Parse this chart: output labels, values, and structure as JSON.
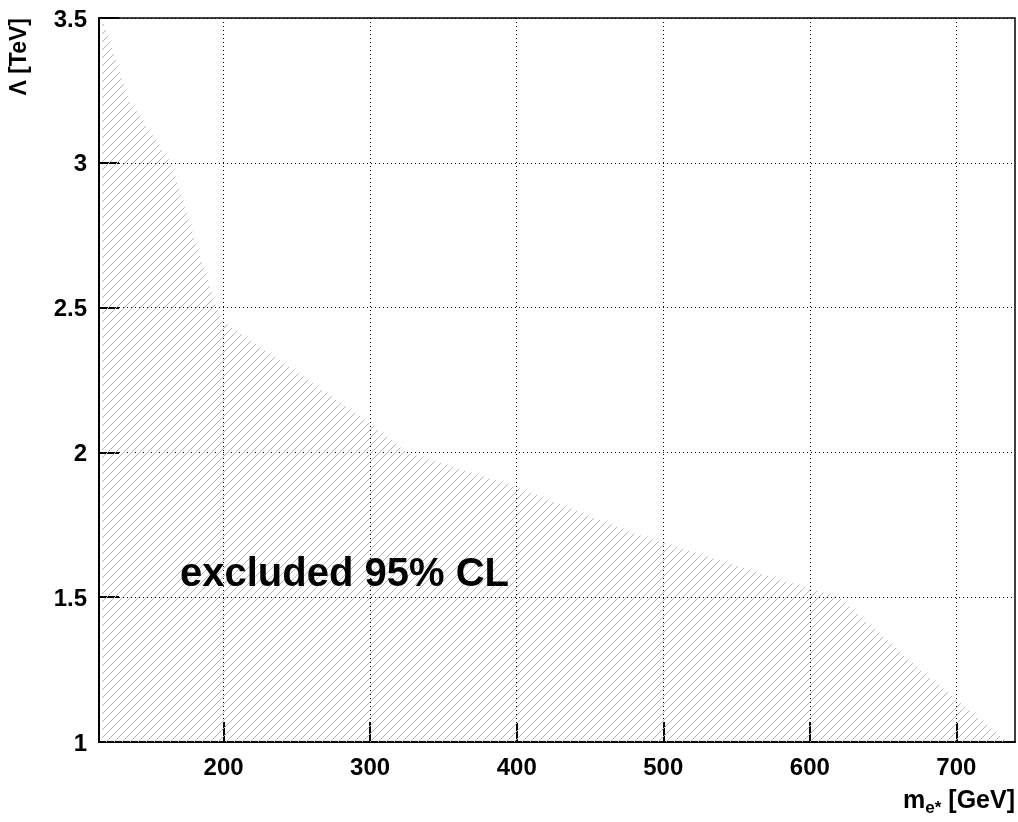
{
  "chart_data": {
    "type": "area",
    "xlabel": "m$_{e*}$ [GeV]",
    "ylabel": "Λ [TeV]",
    "x": [
      117,
      135,
      164,
      195,
      200,
      249,
      300,
      325,
      400,
      480,
      580,
      620,
      675,
      735
    ],
    "values": [
      3.5,
      3.22,
      3.0,
      2.5,
      2.45,
      2.28,
      2.1,
      2.0,
      1.88,
      1.72,
      1.56,
      1.5,
      1.25,
      1.0
    ],
    "color": "#b4b4b4",
    "xlim": [
      115,
      740
    ],
    "xticks": [
      200,
      300,
      400,
      500,
      600,
      700
    ],
    "ylim": [
      1,
      3.5
    ],
    "yticks": [
      1,
      1.5,
      2,
      2.5,
      3,
      3.5
    ],
    "grid": true,
    "annotations": [
      "excluded 95% CL"
    ]
  }
}
